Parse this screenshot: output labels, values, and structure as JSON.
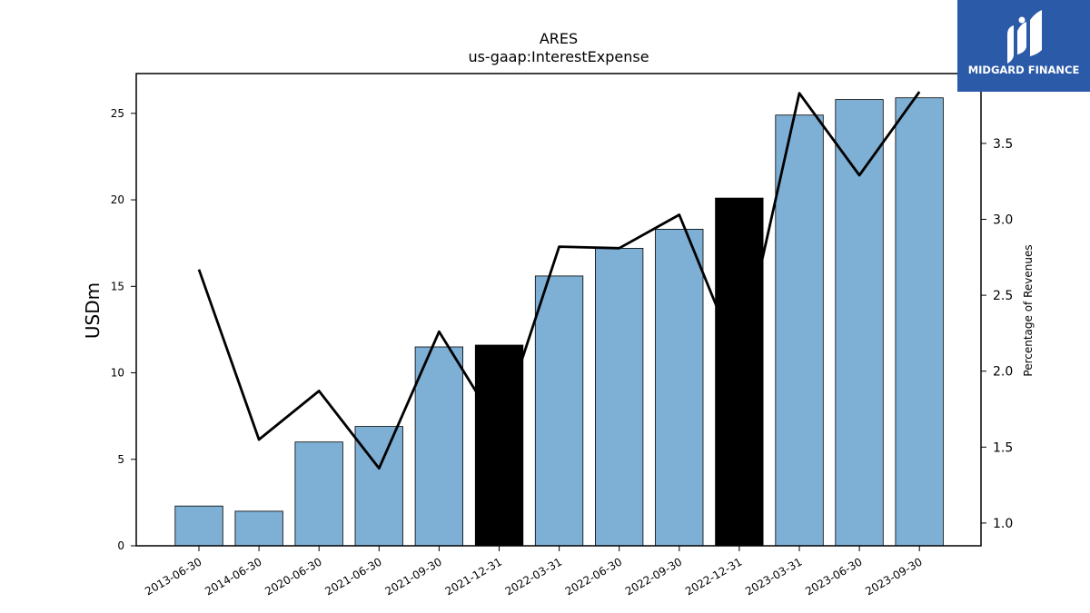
{
  "chart_data": {
    "type": "bar",
    "title": "ARES",
    "subtitle": "us-gaap:InterestExpense",
    "ylabel": "USDm",
    "y2label": "Percentage of Revenues",
    "categories": [
      "2013-06-30",
      "2014-06-30",
      "2020-06-30",
      "2021-06-30",
      "2021-09-30",
      "2021-12-31",
      "2022-03-31",
      "2022-06-30",
      "2022-09-30",
      "2022-12-31",
      "2023-03-31",
      "2023-06-30",
      "2023-09-30"
    ],
    "values": [
      2.3,
      2.0,
      6.0,
      6.9,
      11.5,
      11.6,
      15.6,
      17.2,
      18.3,
      20.1,
      24.9,
      25.8,
      25.9
    ],
    "highlighted": [
      false,
      false,
      false,
      false,
      false,
      true,
      false,
      false,
      false,
      true,
      false,
      false,
      false
    ],
    "ylim": [
      0,
      27.3
    ],
    "yticks": [
      0,
      5,
      10,
      15,
      20,
      25
    ],
    "line_series": {
      "values": [
        2.67,
        1.55,
        1.87,
        1.36,
        2.26,
        1.62,
        2.82,
        2.81,
        3.03,
        2.06,
        3.83,
        3.29,
        3.84
      ]
    },
    "y2lim": [
      0.85,
      3.96
    ],
    "y2ticks": [
      1.0,
      1.5,
      2.0,
      2.5,
      3.0,
      3.5
    ],
    "colors": {
      "bar": "#7eafd4",
      "bar_highlight": "#000000",
      "line": "#000000"
    },
    "grid": false
  },
  "logo": {
    "text": "MIDGARD FINANCE",
    "background": "#2b5aa8"
  }
}
